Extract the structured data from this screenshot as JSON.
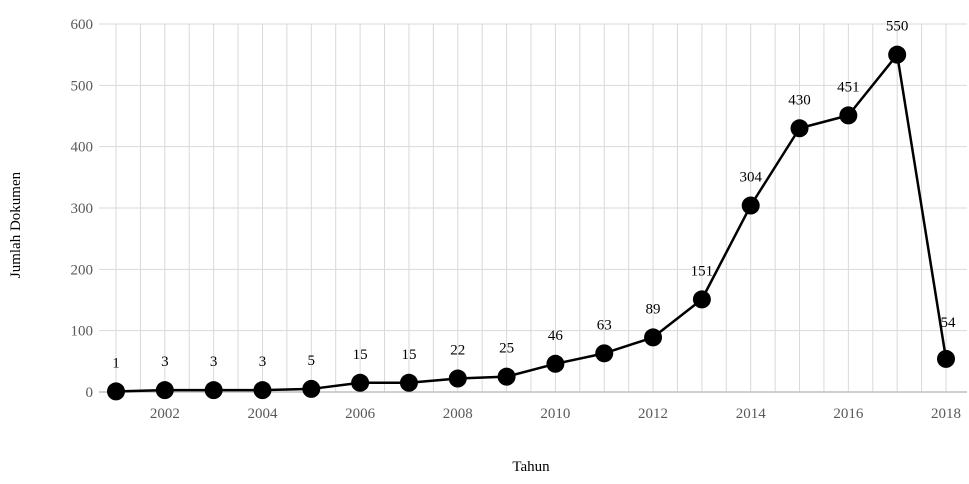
{
  "chart_data": {
    "type": "line",
    "title": "",
    "xlabel": "Tahun",
    "ylabel": "Jumlah Dokumen",
    "x": [
      2001,
      2002,
      2003,
      2004,
      2005,
      2006,
      2007,
      2008,
      2009,
      2010,
      2011,
      2012,
      2013,
      2014,
      2015,
      2016,
      2017,
      2018
    ],
    "xticks": [
      "2002",
      "2004",
      "2006",
      "2008",
      "2010",
      "2012",
      "2014",
      "2016",
      "2018"
    ],
    "yticks": [
      "0",
      "100",
      "200",
      "300",
      "400",
      "500",
      "600"
    ],
    "series": [
      {
        "values": [
          1,
          3,
          3,
          3,
          5,
          15,
          15,
          22,
          25,
          46,
          63,
          89,
          151,
          304,
          430,
          451,
          550,
          54
        ]
      }
    ],
    "data_labels": [
      "1",
      "3",
      "3",
      "3",
      "5",
      "15",
      "15",
      "22",
      "25",
      "46",
      "63",
      "89",
      "151",
      "304",
      "430",
      "451",
      "550",
      "54"
    ],
    "ylim": [
      0,
      600
    ],
    "xlim": [
      2001,
      2018
    ],
    "grid": true,
    "legend": "none",
    "colors": {
      "line": "#000000",
      "marker": "#000000",
      "grid": "#d9d9d9",
      "axis": "#bfbfbf",
      "tick_text": "#595959"
    }
  }
}
